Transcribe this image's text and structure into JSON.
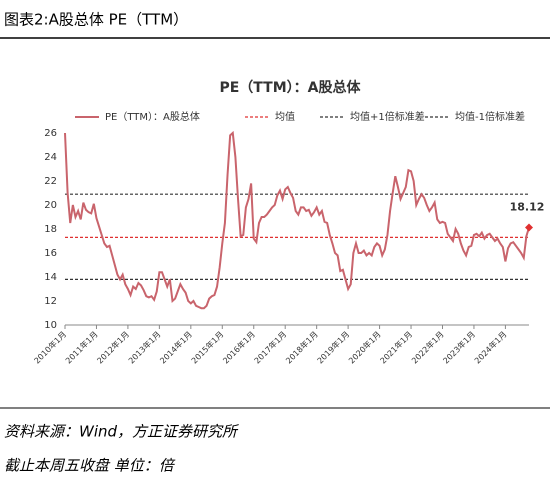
{
  "caption": "图表2:A股总体 PE（TTM）",
  "source": "资料来源：Wind，方正证券研究所",
  "note": "截止本周五收盘 单位：倍",
  "chart_data": {
    "type": "line",
    "title": "PE（TTM）：A股总体",
    "categories": [
      "2010年1月",
      null,
      null,
      null,
      null,
      null,
      null,
      null,
      null,
      null,
      null,
      null,
      "2011年1月",
      null,
      null,
      null,
      null,
      null,
      null,
      null,
      null,
      null,
      null,
      null,
      "2012年1月",
      null,
      null,
      null,
      null,
      null,
      null,
      null,
      null,
      null,
      null,
      null,
      "2013年1月",
      null,
      null,
      null,
      null,
      null,
      null,
      null,
      null,
      null,
      null,
      null,
      "2014年1月",
      null,
      null,
      null,
      null,
      null,
      null,
      null,
      null,
      null,
      null,
      null,
      "2015年1月",
      null,
      null,
      null,
      null,
      null,
      null,
      null,
      null,
      null,
      null,
      null,
      "2016年1月",
      null,
      null,
      null,
      null,
      null,
      null,
      null,
      null,
      null,
      null,
      null,
      "2017年1月",
      null,
      null,
      null,
      null,
      null,
      null,
      null,
      null,
      null,
      null,
      null,
      "2018年1月",
      null,
      null,
      null,
      null,
      null,
      null,
      null,
      null,
      null,
      null,
      null,
      "2019年1月",
      null,
      null,
      null,
      null,
      null,
      null,
      null,
      null,
      null,
      null,
      null,
      "2020年1月",
      null,
      null,
      null,
      null,
      null,
      null,
      null,
      null,
      null,
      null,
      null,
      "2021年1月",
      null,
      null,
      null,
      null,
      null,
      null,
      null,
      null,
      null,
      null,
      null,
      "2022年1月",
      null,
      null,
      null,
      null,
      null,
      null,
      null,
      null,
      null,
      null,
      null,
      "2023年1月",
      null,
      null,
      null,
      null,
      null,
      null,
      null,
      null,
      null,
      null,
      null,
      "2024年1月",
      null,
      null,
      null,
      null,
      null,
      null,
      null,
      null,
      null
    ],
    "series": [
      {
        "name": "PE（TTM）：A股总体",
        "color": "#c9646c",
        "values": [
          26.0,
          21.0,
          18.5,
          20.0,
          19.0,
          19.5,
          18.8,
          20.2,
          19.6,
          19.4,
          19.3,
          20.1,
          18.9,
          18.2,
          17.5,
          16.8,
          16.5,
          16.6,
          15.8,
          15.0,
          14.2,
          13.8,
          14.2,
          13.4,
          13.0,
          12.5,
          13.2,
          13.0,
          13.5,
          13.3,
          12.9,
          12.4,
          12.3,
          12.4,
          12.1,
          12.8,
          14.4,
          14.4,
          13.8,
          13.2,
          13.8,
          12.0,
          12.2,
          12.8,
          13.4,
          13.0,
          12.7,
          12.0,
          11.8,
          12.0,
          11.6,
          11.5,
          11.4,
          11.4,
          11.6,
          12.2,
          12.4,
          12.5,
          13.2,
          14.8,
          16.8,
          18.5,
          22.5,
          25.8,
          26.0,
          24.0,
          20.5,
          17.4,
          17.5,
          19.8,
          20.5,
          21.8,
          17.2,
          16.9,
          18.5,
          19.0,
          19.0,
          19.2,
          19.5,
          19.8,
          20.0,
          20.8,
          21.2,
          20.5,
          21.3,
          21.5,
          21.0,
          20.6,
          19.5,
          19.2,
          19.8,
          19.8,
          19.5,
          19.6,
          19.1,
          19.4,
          19.8,
          19.2,
          19.5,
          18.6,
          18.5,
          17.5,
          16.8,
          16.0,
          15.8,
          14.5,
          14.6,
          13.8,
          13.0,
          13.4,
          16.0,
          16.8,
          16.0,
          16.0,
          16.2,
          15.8,
          16.0,
          15.8,
          16.5,
          16.8,
          16.6,
          15.8,
          16.3,
          17.5,
          19.5,
          21.0,
          22.4,
          21.5,
          20.5,
          21.0,
          21.5,
          22.9,
          22.8,
          22.0,
          20.0,
          20.5,
          20.9,
          20.6,
          20.0,
          19.5,
          19.8,
          20.2,
          18.8,
          18.5,
          18.6,
          18.5,
          17.6,
          17.3,
          17.0,
          18.0,
          17.6,
          16.8,
          16.2,
          15.8,
          16.5,
          16.6,
          17.5,
          17.6,
          17.4,
          17.7,
          17.2,
          17.5,
          17.6,
          17.3,
          17.0,
          17.2,
          16.8,
          16.5,
          15.3,
          16.4,
          16.8,
          16.9,
          16.6,
          16.3,
          16.0,
          15.6,
          17.4,
          18.12
        ]
      }
    ],
    "reference_lines": [
      {
        "name": "均值",
        "value": 17.3,
        "color": "#e03030"
      },
      {
        "name": "均值+1倍标准差",
        "value": 20.9,
        "color": "#333333"
      },
      {
        "name": "均值-1倍标准差",
        "value": 13.8,
        "color": "#333333"
      }
    ],
    "ylim": [
      10,
      26
    ],
    "yticks": [
      10,
      12,
      14,
      16,
      18,
      20,
      22,
      24,
      26
    ],
    "grid": false
  }
}
